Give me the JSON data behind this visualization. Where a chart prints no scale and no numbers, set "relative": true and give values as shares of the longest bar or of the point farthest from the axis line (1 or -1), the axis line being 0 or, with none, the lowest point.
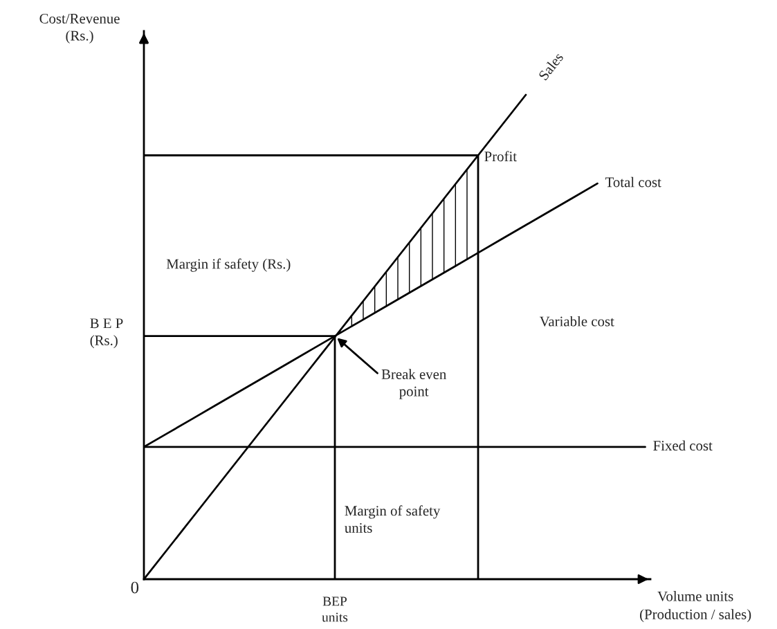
{
  "chart_data": {
    "type": "line",
    "relative": true,
    "xlabel": "Volume units\n(Production / sales)",
    "ylabel": "Cost/Revenue\n(Rs.)",
    "categories": [
      null,
      null,
      null,
      null,
      null,
      null,
      null,
      null,
      null,
      null,
      null,
      null,
      null,
      null,
      null,
      null,
      null,
      null,
      null,
      null,
      null,
      null
    ],
    "series": [
      {
        "name": "Sales",
        "color": "#000000",
        "values": [
          0,
          0.0625,
          0.125,
          0.1875,
          0.25,
          0.3125,
          0.375,
          0.4375,
          0.5,
          0.5625,
          0.625,
          0.6875,
          0.75,
          0.8125,
          0.875,
          0.9375,
          1.0,
          null,
          null,
          null,
          null,
          null
        ]
      },
      {
        "name": "Total cost",
        "color": "#000000",
        "values": [
          0.273,
          0.3016,
          0.3302,
          0.3589,
          0.3875,
          0.4161,
          0.4447,
          0.4734,
          0.502,
          0.5306,
          0.5592,
          0.5879,
          0.6165,
          0.6451,
          0.6737,
          0.7024,
          0.731,
          0.7596,
          0.7882,
          0.8169,
          null,
          null
        ]
      },
      {
        "name": "Fixed cost",
        "color": "#000000",
        "values": [
          0.273,
          0.273,
          0.273,
          0.273,
          0.273,
          0.273,
          0.273,
          0.273,
          0.273,
          0.273,
          0.273,
          0.273,
          0.273,
          0.273,
          0.273,
          0.273,
          0.273,
          0.273,
          0.273,
          0.273,
          0.273,
          0.273
        ]
      },
      {
        "type": "step",
        "color": "#000000",
        "values": [
          0.502,
          0.502,
          0.502,
          0.502,
          0.502,
          0.502,
          0.502,
          0.502,
          0,
          null,
          null,
          null,
          null,
          null,
          null,
          null,
          null,
          null,
          null,
          null,
          null,
          null
        ]
      },
      {
        "type": "step",
        "color": "#000000",
        "values": [
          0.875,
          0.875,
          0.875,
          0.875,
          0.875,
          0.875,
          0.875,
          0.875,
          0.875,
          0.875,
          0.875,
          0.875,
          0.875,
          0.875,
          0,
          null,
          null,
          null,
          null,
          null,
          null,
          null
        ]
      }
    ],
    "annotations": [
      "0",
      "B E P\n(Rs.)",
      "BEP\nunits",
      "Break even\npoint",
      "Profit",
      "Margin if safety (Rs.)",
      "Variable cost",
      "Margin of safety\nunits"
    ],
    "marker": "none",
    "line_style": "solid"
  }
}
